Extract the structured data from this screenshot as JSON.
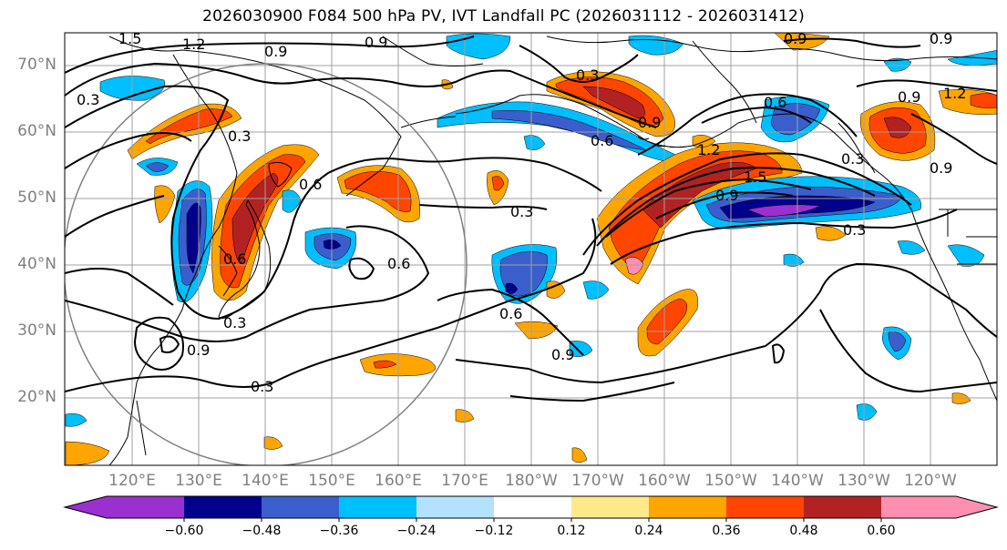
{
  "title": "2026030900 F084 500 hPa PV, IVT Landfall PC (2026031112 - 2026031412)",
  "lat_labels": [
    "70°N",
    "60°N",
    "50°N",
    "40°N",
    "30°N",
    "20°N"
  ],
  "lon_labels": [
    "120°E",
    "130°E",
    "140°E",
    "150°E",
    "160°E",
    "170°E",
    "180°W",
    "170°W",
    "160°W",
    "150°W",
    "140°W",
    "130°W",
    "120°W"
  ],
  "colorbar": {
    "ticks": [
      "−0.60",
      "−0.48",
      "−0.36",
      "−0.24",
      "−0.12",
      "0.12",
      "0.24",
      "0.36",
      "0.48",
      "0.60"
    ],
    "colors": [
      "#9b30d0",
      "#00008b",
      "#3a5fcd",
      "#00bfff",
      "#b2e2ff",
      "#ffffff",
      "#ffe98a",
      "#ffa500",
      "#ff4500",
      "#b22222",
      "#ff8fb0"
    ]
  },
  "contour_labels": [
    "1.5",
    "1.2",
    "0.9",
    "0.9",
    "0.3",
    "0.6",
    "0.3",
    "0.6",
    "0.6",
    "0.9",
    "0.3",
    "0.3",
    "0.6",
    "0.9",
    "0.9",
    "0.3",
    "0.6",
    "1.5",
    "1.2",
    "0.9",
    "0.3",
    "0.9",
    "0.6",
    "0.9",
    "1.2",
    "0.9",
    "0.3",
    "0.9",
    "0.3"
  ]
}
